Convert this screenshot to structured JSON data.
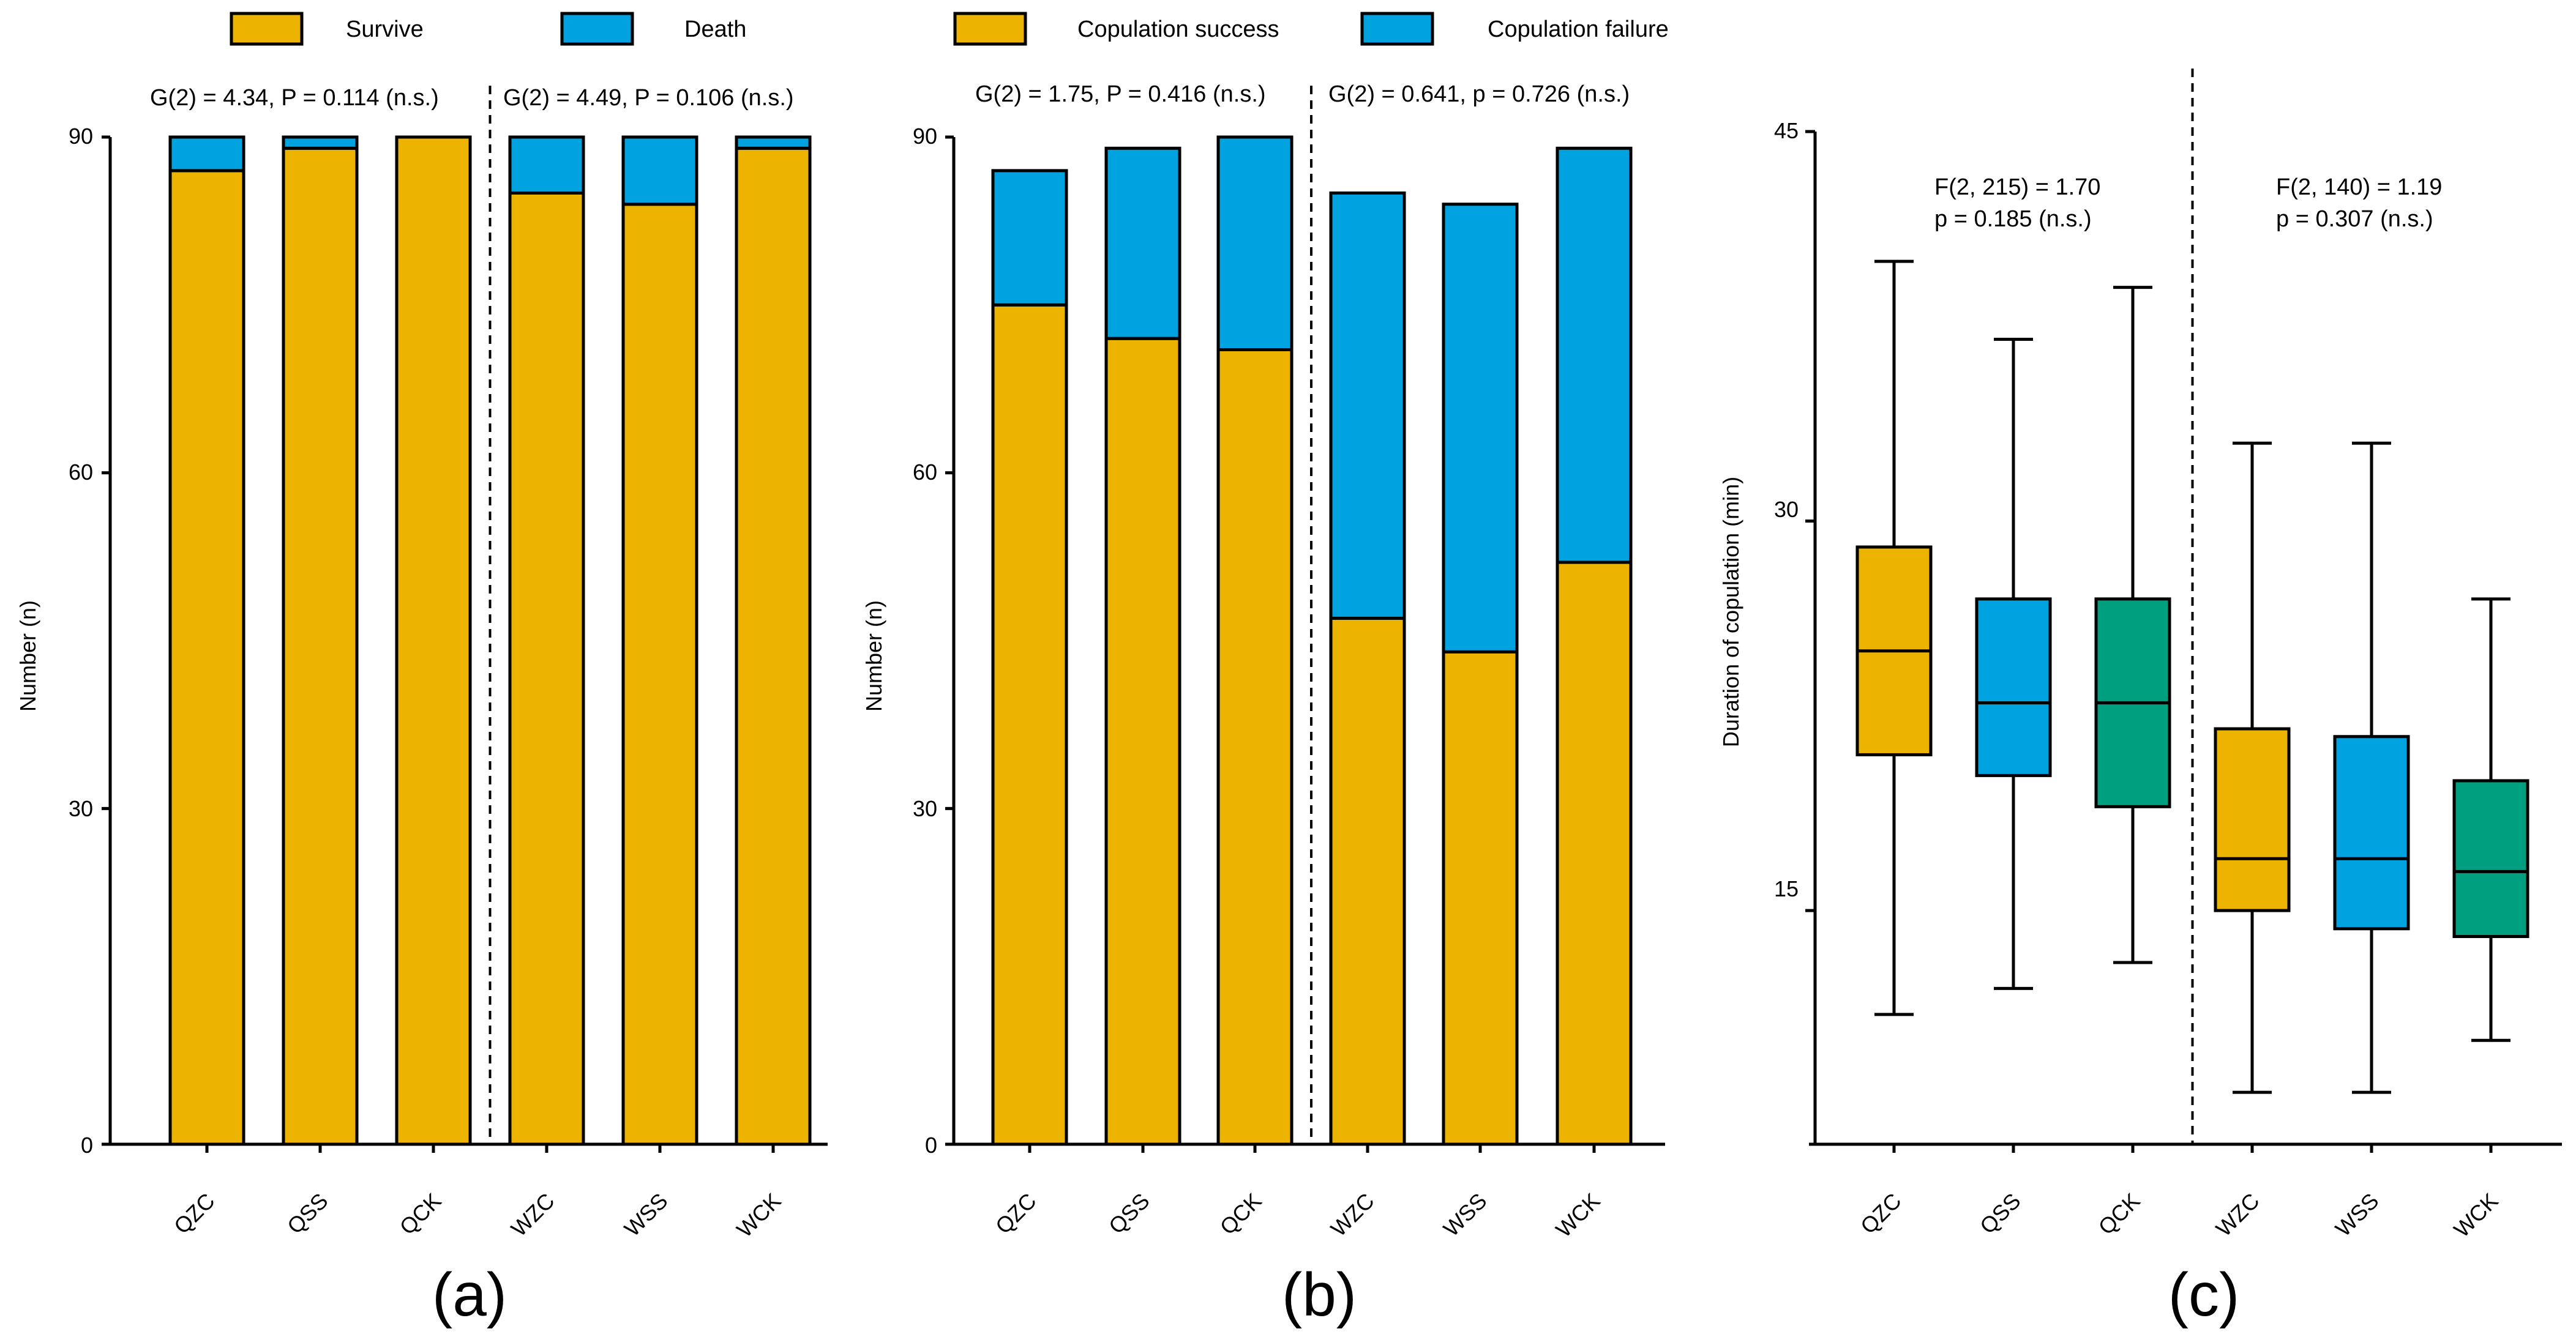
{
  "colors": {
    "gold": "#ecb300",
    "blue": "#00a3df",
    "teal": "#009f7f",
    "stroke": "#000000"
  },
  "chart_data": [
    {
      "panel_label": "(a)",
      "type": "bar",
      "stacked": true,
      "categories": [
        "QZC",
        "QSS",
        "QCK",
        "WZC",
        "WSS",
        "WCK"
      ],
      "series": [
        {
          "name": "Survive",
          "values": [
            87,
            89,
            90,
            85,
            84,
            89
          ]
        },
        {
          "name": "Death",
          "values": [
            3,
            1,
            0,
            5,
            6,
            1
          ]
        }
      ],
      "ylabel": "Number (n)",
      "ylim": [
        0,
        90
      ],
      "yticks": [
        0,
        30,
        60,
        90
      ],
      "legend_position": "top",
      "annotations": [
        "G(2) = 4.34, P = 0.114 (n.s.)",
        "G(2) = 4.49, P = 0.106 (n.s.)"
      ],
      "divider_after_index": 2,
      "grid": false
    },
    {
      "panel_label": "(b)",
      "type": "bar",
      "stacked": true,
      "categories": [
        "QZC",
        "QSS",
        "QCK",
        "WZC",
        "WSS",
        "WCK"
      ],
      "series": [
        {
          "name": "Copulation success",
          "values": [
            75,
            72,
            71,
            47,
            44,
            52
          ]
        },
        {
          "name": "Copulation failure",
          "values": [
            12,
            17,
            19,
            38,
            40,
            37
          ]
        }
      ],
      "ylabel": "Number (n)",
      "ylim": [
        0,
        90
      ],
      "yticks": [
        0,
        30,
        60,
        90
      ],
      "legend_position": "top",
      "annotations": [
        "G(2) = 1.75, P = 0.416 (n.s.)",
        "G(2) = 0.641, p = 0.726 (n.s.)"
      ],
      "divider_after_index": 2,
      "grid": false
    },
    {
      "panel_label": "(c)",
      "type": "box",
      "categories": [
        "QZC",
        "QSS",
        "QCK",
        "WZC",
        "WSS",
        "WCK"
      ],
      "boxes": [
        {
          "min": 11,
          "q1": 21,
          "median": 25,
          "q3": 29,
          "max": 40
        },
        {
          "min": 12,
          "q1": 20.2,
          "median": 23,
          "q3": 27,
          "max": 37
        },
        {
          "min": 13,
          "q1": 19,
          "median": 23,
          "q3": 27,
          "max": 39
        },
        {
          "min": 8,
          "q1": 15,
          "median": 17,
          "q3": 22,
          "max": 33
        },
        {
          "min": 8,
          "q1": 14.3,
          "median": 17,
          "q3": 21.7,
          "max": 33
        },
        {
          "min": 10,
          "q1": 14,
          "median": 16.5,
          "q3": 20,
          "max": 27
        }
      ],
      "box_colors": [
        "gold",
        "blue",
        "teal",
        "gold",
        "blue",
        "teal"
      ],
      "ylabel": "Duration of copulation (min)",
      "ylim": [
        6,
        45
      ],
      "yticks": [
        15,
        30,
        45
      ],
      "annotations": [
        [
          "F(2, 215) = 1.70",
          "p = 0.185 (n.s.)"
        ],
        [
          "F(2, 140) = 1.19",
          "p = 0.307 (n.s.)"
        ]
      ],
      "divider_after_index": 2,
      "grid": false
    }
  ]
}
